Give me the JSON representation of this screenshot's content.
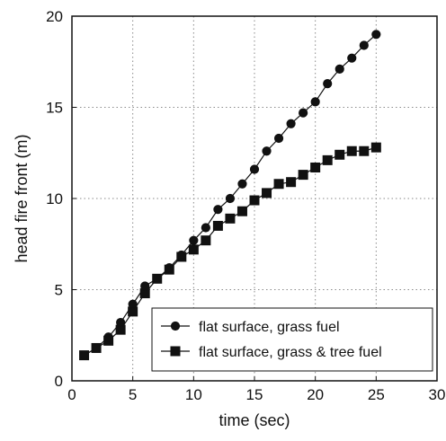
{
  "chart_data": {
    "type": "line",
    "title": "",
    "xlabel": "time (sec)",
    "ylabel": "head fire front (m)",
    "xlim": [
      0,
      30
    ],
    "ylim": [
      0,
      20
    ],
    "x_ticks": [
      "0",
      "5",
      "10",
      "15",
      "20",
      "25",
      "30"
    ],
    "y_ticks": [
      "0",
      "5",
      "10",
      "15",
      "20"
    ],
    "grid": true,
    "legend_position": "bottom-right",
    "series": [
      {
        "name": "flat surface, grass fuel",
        "marker": "circle",
        "color": "#111111",
        "x": [
          1,
          2,
          3,
          4,
          5,
          6,
          7,
          8,
          9,
          10,
          11,
          12,
          13,
          14,
          15,
          16,
          17,
          18,
          19,
          20,
          21,
          22,
          23,
          24,
          25
        ],
        "y": [
          1.4,
          1.8,
          2.4,
          3.2,
          4.2,
          5.2,
          5.6,
          6.2,
          6.9,
          7.7,
          8.4,
          9.4,
          10.0,
          10.8,
          11.6,
          12.6,
          13.3,
          14.1,
          14.7,
          15.3,
          16.3,
          17.1,
          17.7,
          18.4,
          19.0
        ]
      },
      {
        "name": "flat surface, grass & tree fuel",
        "marker": "square",
        "color": "#111111",
        "x": [
          1,
          2,
          3,
          4,
          5,
          6,
          7,
          8,
          9,
          10,
          11,
          12,
          13,
          14,
          15,
          16,
          17,
          18,
          19,
          20,
          21,
          22,
          23,
          24,
          25
        ],
        "y": [
          1.4,
          1.8,
          2.2,
          2.8,
          3.8,
          4.8,
          5.6,
          6.1,
          6.8,
          7.2,
          7.7,
          8.5,
          8.9,
          9.3,
          9.9,
          10.3,
          10.8,
          10.9,
          11.3,
          11.7,
          12.1,
          12.4,
          12.6,
          12.6,
          12.8
        ]
      }
    ]
  }
}
